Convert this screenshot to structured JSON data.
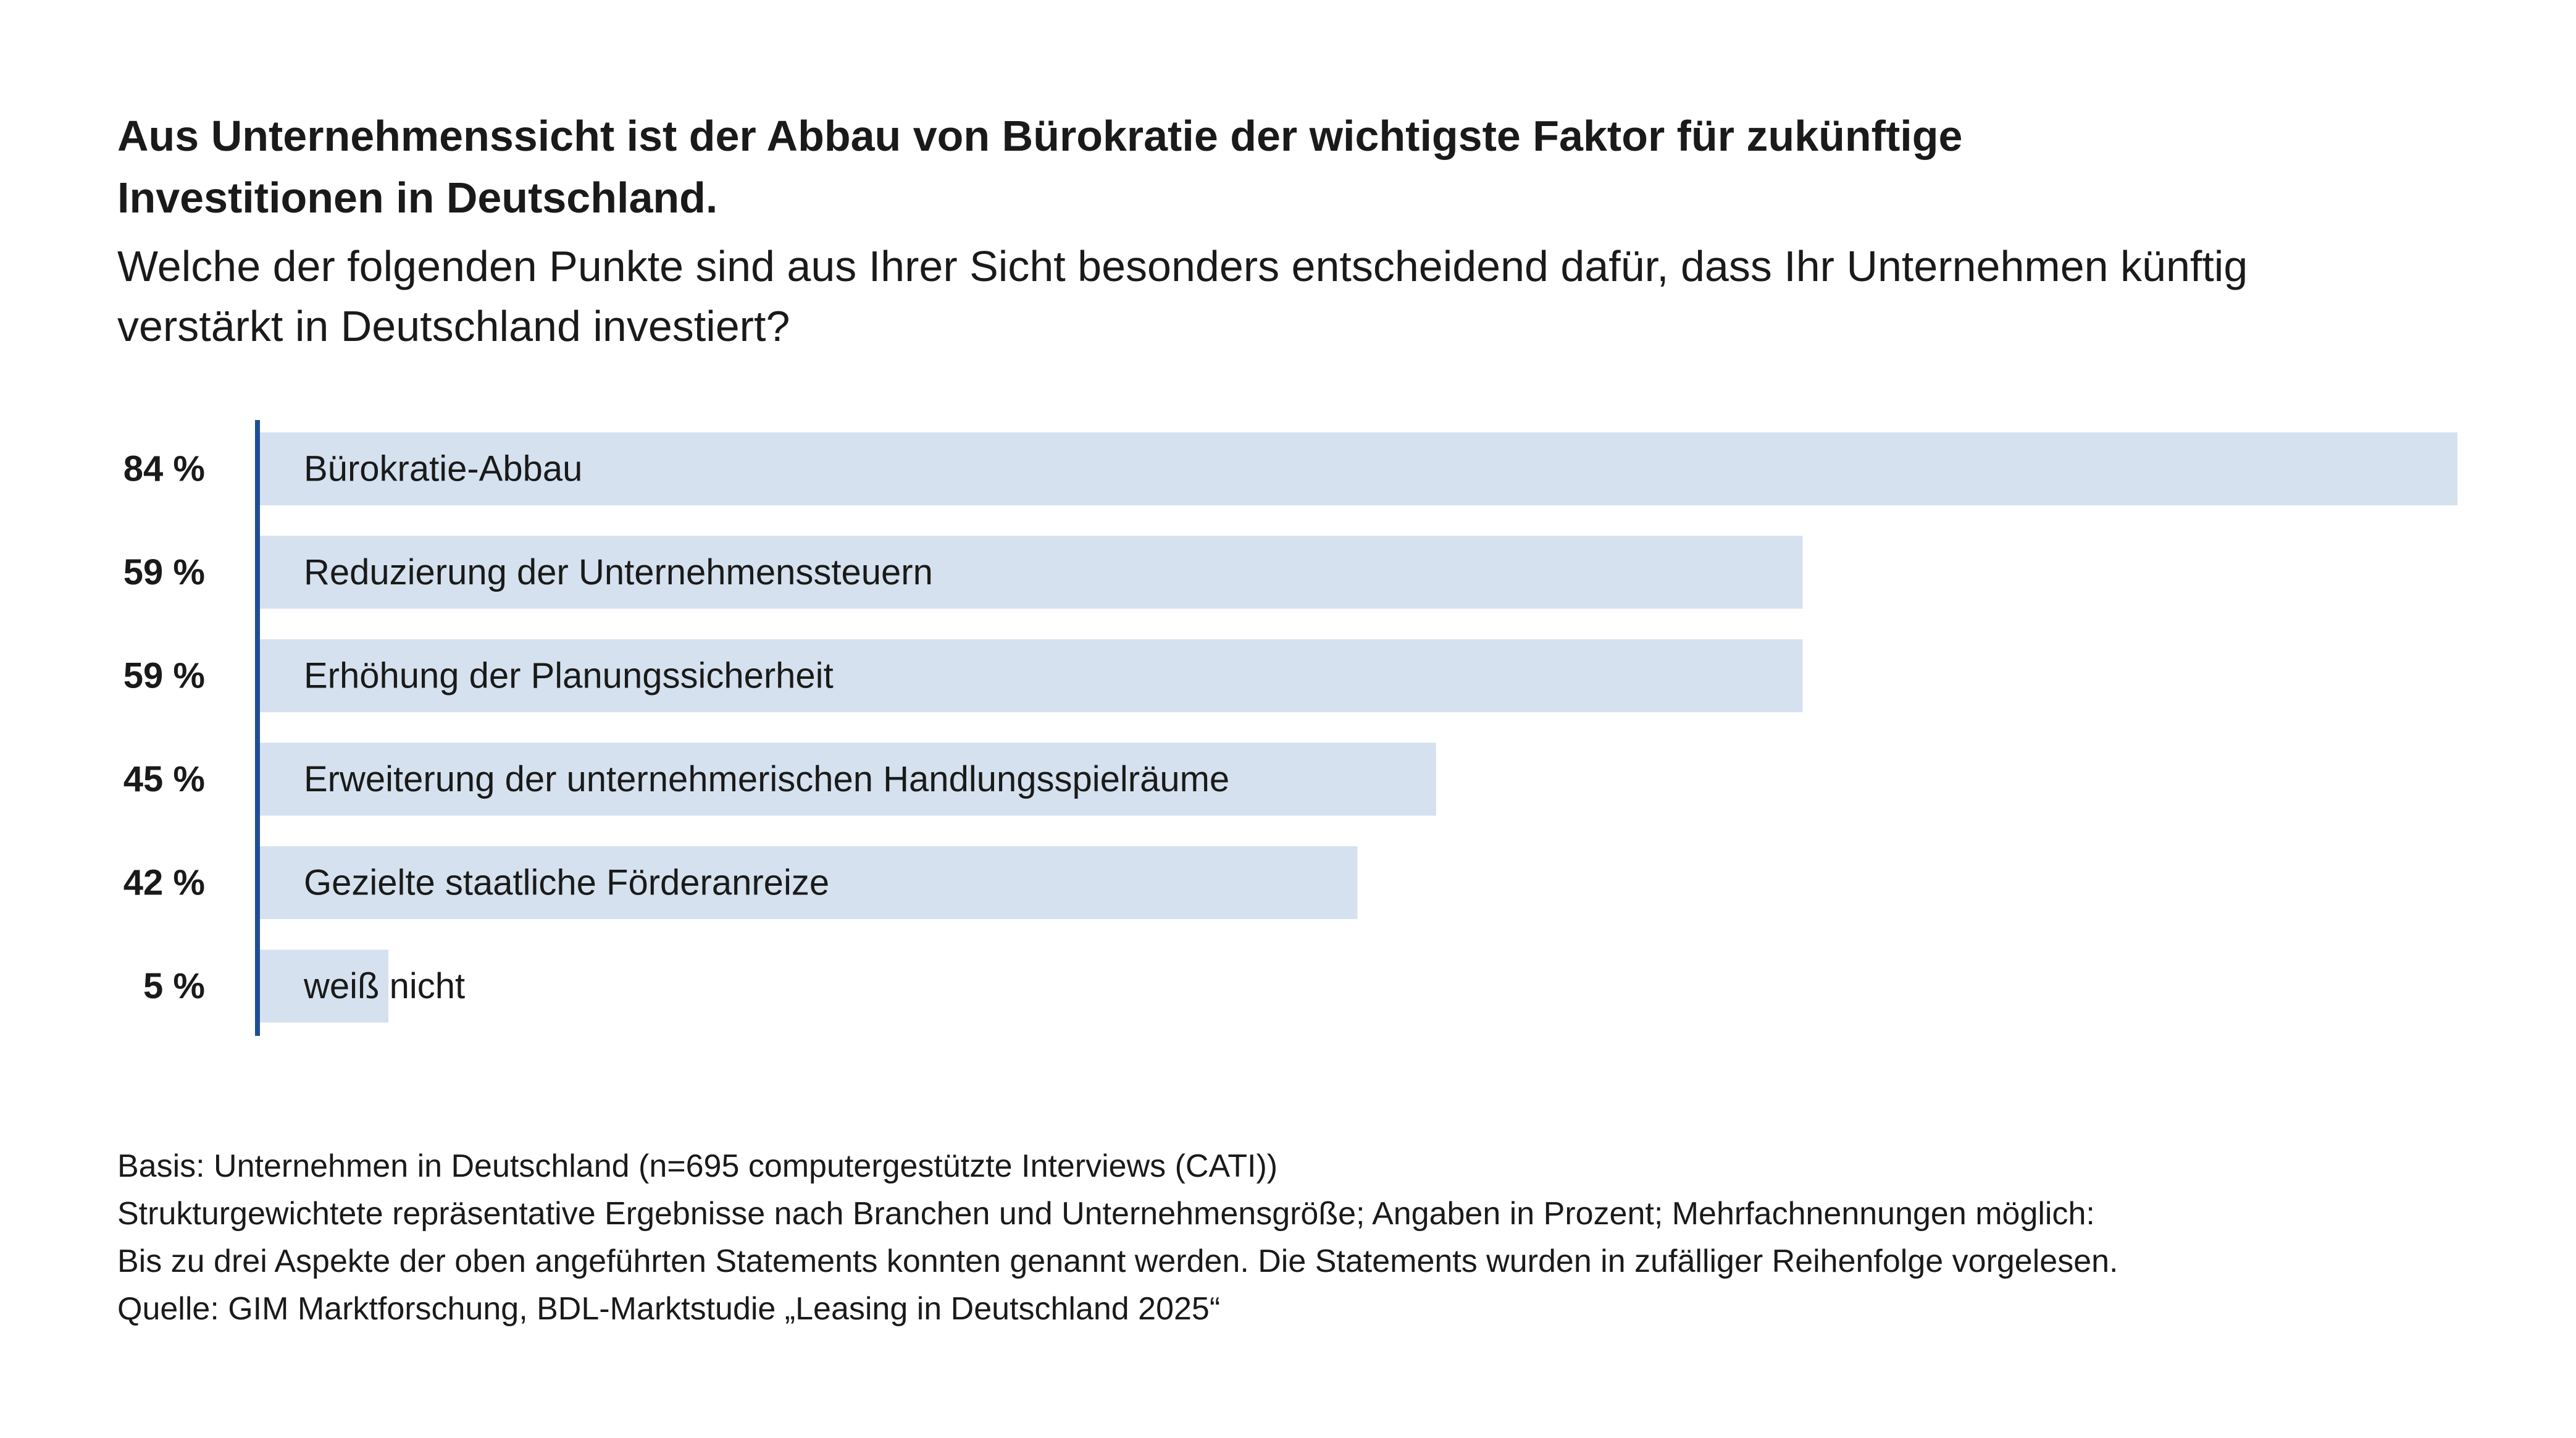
{
  "title": "Aus Unternehmenssicht ist der Abbau von Bürokratie der wichtigste Faktor für zukünftige Investitionen in Deutschland.",
  "subtitle": "Welche der folgenden Punkte sind aus Ihrer Sicht besonders entscheidend dafür, dass Ihr Unternehmen künftig verstärkt in Deutschland investiert?",
  "colors": {
    "bar": "#d5e1ee",
    "axis": "#1f4e94",
    "text": "#1a1a1a"
  },
  "chart_data": {
    "type": "bar",
    "orientation": "horizontal",
    "categories": [
      "Bürokratie-Abbau",
      "Reduzierung der Unternehmenssteuern",
      "Erhöhung der Planungssicherheit",
      "Erweiterung der unternehmerischen Handlungsspielräume",
      "Gezielte staatliche Förderanreize",
      "weiß nicht"
    ],
    "values": [
      84,
      59,
      59,
      45,
      42,
      5
    ],
    "value_labels": [
      "84 %",
      "59 %",
      "59 %",
      "45 %",
      "42 %",
      "5 %"
    ],
    "unit": "%",
    "xlim": [
      0,
      84
    ],
    "grid": false,
    "legend": "none"
  },
  "footnotes": [
    "Basis: Unternehmen in Deutschland (n=695 computergestützte Interviews (CATI))",
    "Strukturgewichtete repräsentative Ergebnisse nach Branchen und Unternehmensgröße; Angaben in Prozent; Mehrfachnennungen möglich:",
    "Bis zu drei Aspekte der oben angeführten Statements konnten genannt werden. Die Statements wurden in zufälliger Reihenfolge vorgelesen.",
    "Quelle: GIM Marktforschung, BDL-Marktstudie „Leasing in Deutschland 2025“"
  ]
}
